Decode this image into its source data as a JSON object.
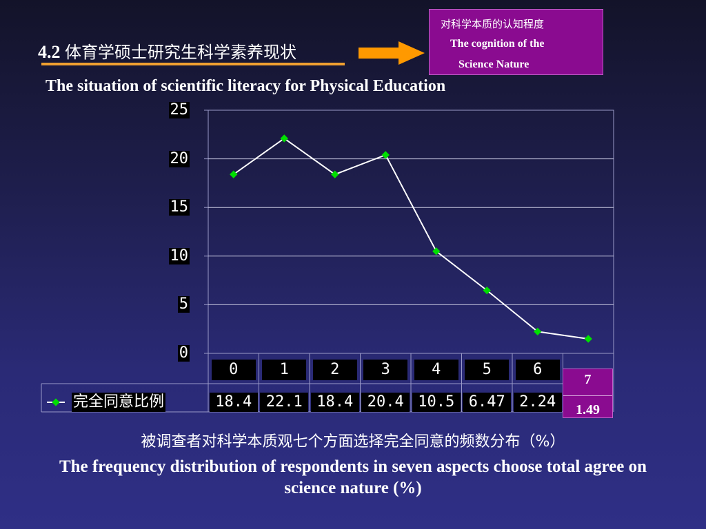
{
  "header": {
    "section_number": "4.2",
    "section_title_zh": "体育学硕士研究生科学素养现状",
    "subtitle_en": "The situation of scientific literacy for Physical Education"
  },
  "callout": {
    "title_zh": "对科学本质的认知程度",
    "line1_en": "The cognition of the",
    "line2_en": "Science Nature",
    "color": "#8a0b90"
  },
  "chart_data": {
    "type": "line",
    "categories": [
      "0",
      "1",
      "2",
      "3",
      "4",
      "5",
      "6",
      "7"
    ],
    "series": [
      {
        "name": "完全同意比例",
        "values": [
          18.4,
          22.1,
          18.4,
          20.4,
          10.5,
          6.47,
          2.24,
          1.49
        ],
        "display_values": [
          "18.4",
          "22.1",
          "18.4",
          "20.4",
          "10.5",
          "6.47",
          "2.24",
          "1.49"
        ],
        "color": "#ffffff",
        "marker_color": "#00e000"
      }
    ],
    "yticks": [
      "0",
      "5",
      "10",
      "15",
      "20",
      "25"
    ],
    "ylim": [
      0,
      25
    ],
    "grid": true,
    "legend": "in data table",
    "highlight": {
      "category": "7",
      "value": "1.49",
      "color": "#8a0b90"
    }
  },
  "caption": {
    "zh": "被调查者对科学本质观七个方面选择完全同意的频数分布（%）",
    "en": "The frequency distribution of respondents in seven aspects choose total agree on science nature (%)"
  }
}
